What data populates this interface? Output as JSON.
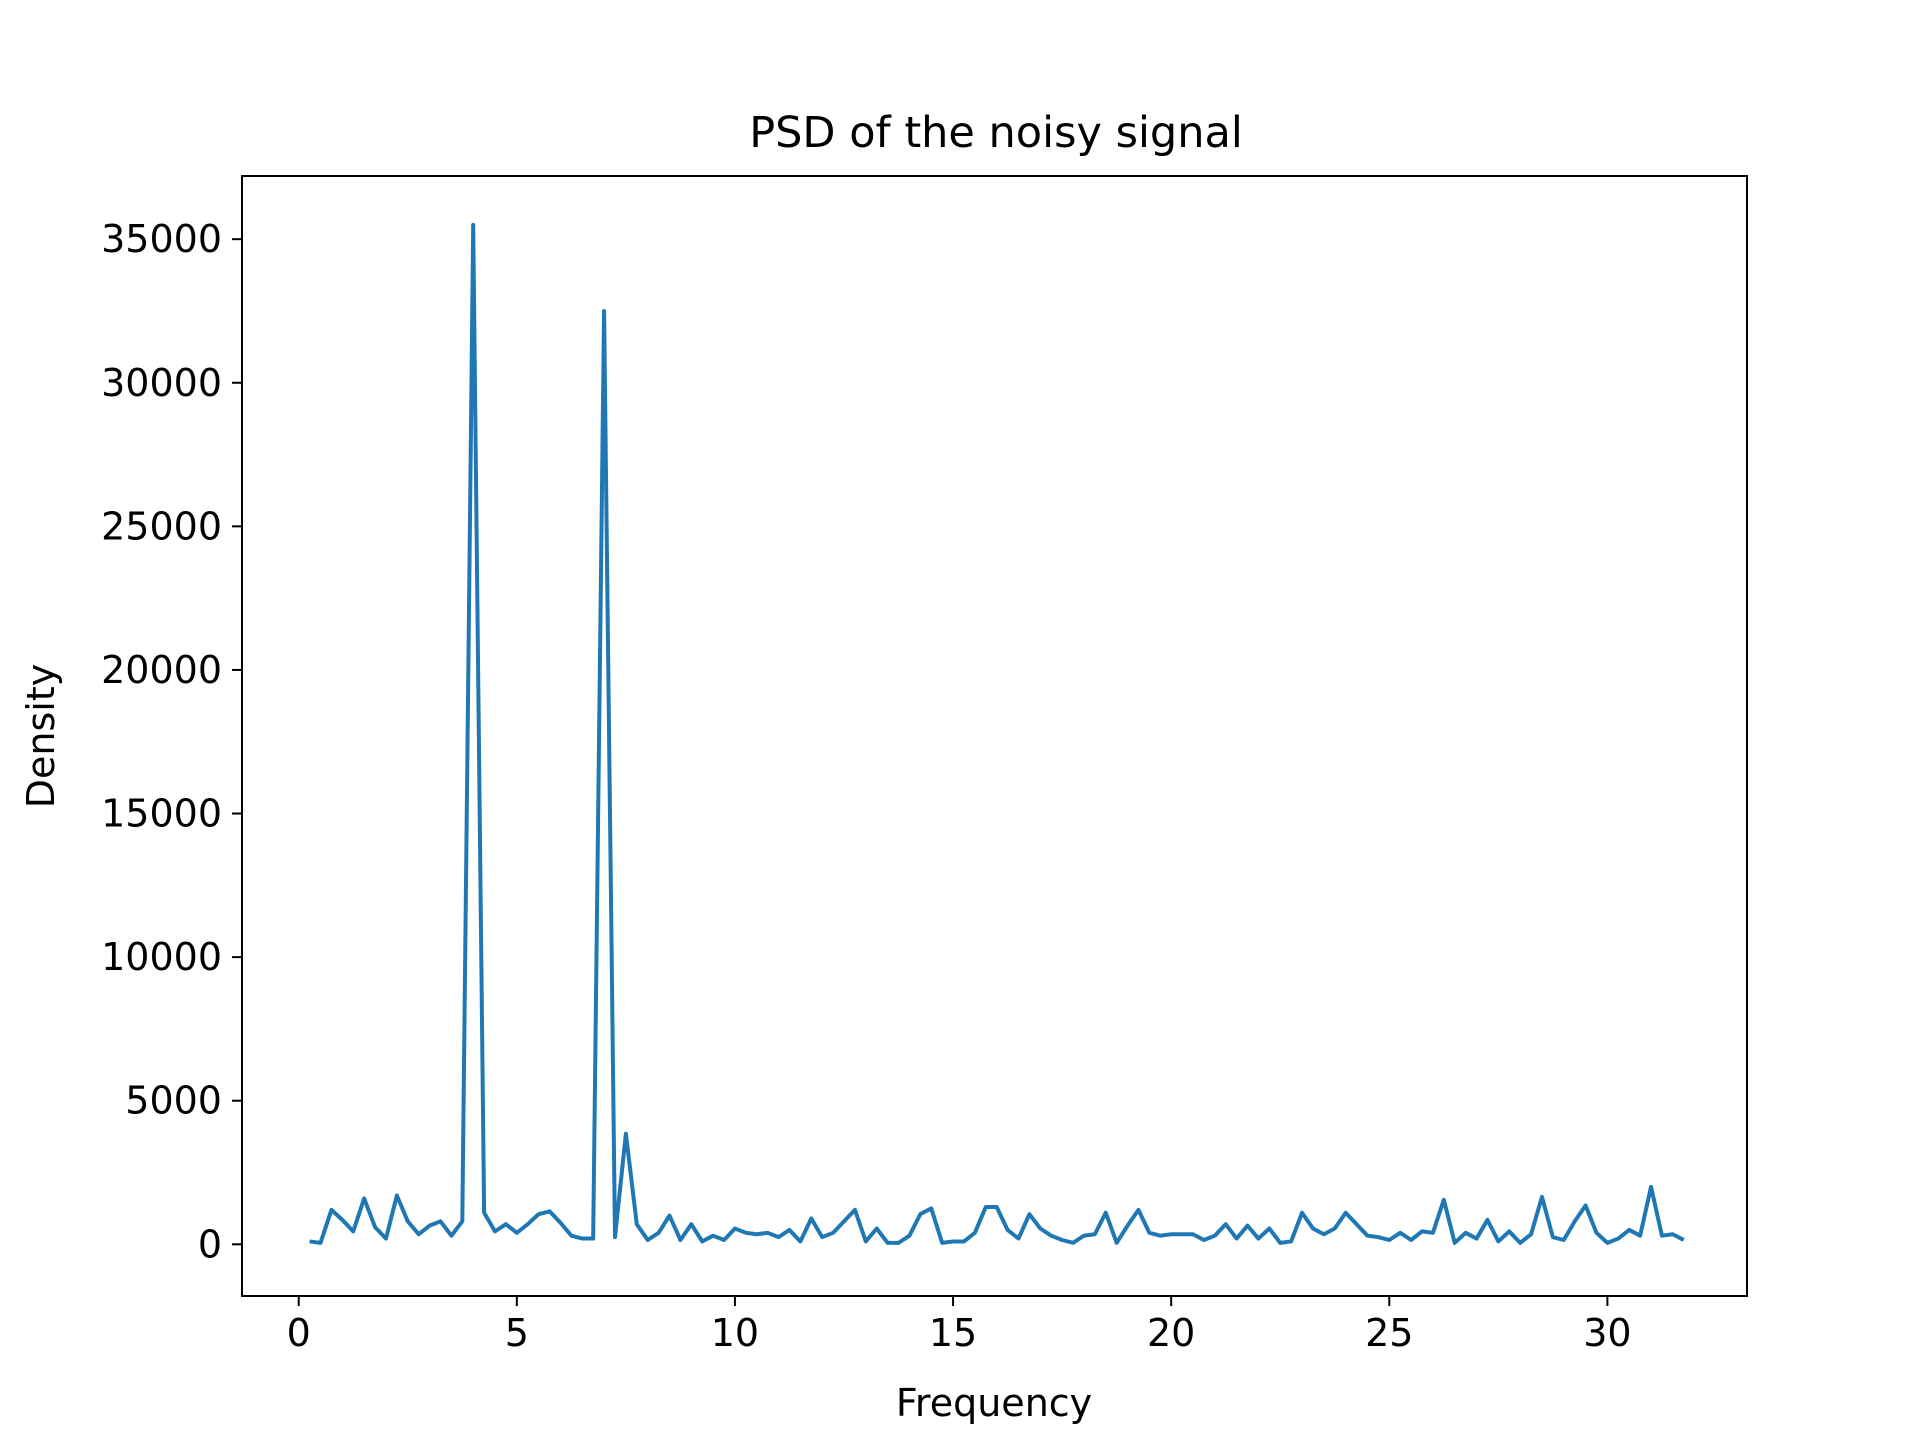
{
  "chart_data": {
    "type": "line",
    "title": "PSD of the noisy signal",
    "xlabel": "Frequency",
    "ylabel": "Density",
    "xlim": [
      -1.3,
      33.2
    ],
    "ylim": [
      -1800,
      37200
    ],
    "xticks": [
      0,
      5,
      10,
      15,
      20,
      25,
      30
    ],
    "xtick_labels": [
      "0",
      "5",
      "10",
      "15",
      "20",
      "25",
      "30"
    ],
    "yticks": [
      0,
      5000,
      10000,
      15000,
      20000,
      25000,
      30000,
      35000
    ],
    "ytick_labels": [
      "0",
      "5000",
      "10000",
      "15000",
      "20000",
      "25000",
      "30000",
      "35000"
    ],
    "grid": false,
    "legend": "none",
    "series": [
      {
        "color": "#1f77b4",
        "x": [
          0.25,
          0.5,
          0.75,
          1.0,
          1.25,
          1.5,
          1.75,
          2.0,
          2.25,
          2.5,
          2.75,
          3.0,
          3.25,
          3.5,
          3.75,
          4.0,
          4.25,
          4.5,
          4.75,
          5.0,
          5.25,
          5.5,
          5.75,
          6.0,
          6.25,
          6.5,
          6.75,
          7.0,
          7.25,
          7.5,
          7.75,
          8.0,
          8.25,
          8.5,
          8.75,
          9.0,
          9.25,
          9.5,
          9.75,
          10.0,
          10.25,
          10.5,
          10.75,
          11.0,
          11.25,
          11.5,
          11.75,
          12.0,
          12.25,
          12.5,
          12.75,
          13.0,
          13.25,
          13.5,
          13.75,
          14.0,
          14.25,
          14.5,
          14.75,
          15.0,
          15.25,
          15.5,
          15.75,
          16.0,
          16.25,
          16.5,
          16.75,
          17.0,
          17.25,
          17.5,
          17.75,
          18.0,
          18.25,
          18.5,
          18.75,
          19.0,
          19.25,
          19.5,
          19.75,
          20.0,
          20.25,
          20.5,
          20.75,
          21.0,
          21.25,
          21.5,
          21.75,
          22.0,
          22.25,
          22.5,
          22.75,
          23.0,
          23.25,
          23.5,
          23.75,
          24.0,
          24.25,
          24.5,
          24.75,
          25.0,
          25.25,
          25.5,
          25.75,
          26.0,
          26.25,
          26.5,
          26.75,
          27.0,
          27.25,
          27.5,
          27.75,
          28.0,
          28.25,
          28.5,
          28.75,
          29.0,
          29.25,
          29.5,
          29.75,
          30.0,
          30.25,
          30.5,
          30.75,
          31.0,
          31.25,
          31.5,
          31.75
        ],
        "y": [
          100,
          50,
          1200,
          850,
          450,
          1600,
          600,
          200,
          1700,
          800,
          350,
          650,
          800,
          300,
          800,
          35500,
          1100,
          450,
          700,
          400,
          700,
          1050,
          1150,
          750,
          300,
          200,
          200,
          32500,
          250,
          3850,
          700,
          150,
          400,
          1000,
          150,
          700,
          100,
          300,
          150,
          550,
          400,
          350,
          400,
          250,
          500,
          100,
          900,
          250,
          400,
          800,
          1200,
          100,
          550,
          50,
          50,
          300,
          1050,
          1250,
          50,
          100,
          100,
          400,
          1300,
          1300,
          500,
          200,
          1050,
          550,
          300,
          150,
          50,
          300,
          350,
          1100,
          50,
          650,
          1200,
          400,
          300,
          350,
          350,
          350,
          150,
          300,
          700,
          200,
          650,
          200,
          550,
          50,
          100,
          1100,
          550,
          350,
          550,
          1100,
          700,
          300,
          250,
          150,
          400,
          150,
          450,
          400,
          1550,
          50,
          400,
          200,
          850,
          100,
          450,
          50,
          350,
          1650,
          250,
          150,
          800,
          1350,
          400,
          50,
          200,
          500,
          300,
          2000,
          300,
          350,
          150
        ]
      }
    ]
  }
}
